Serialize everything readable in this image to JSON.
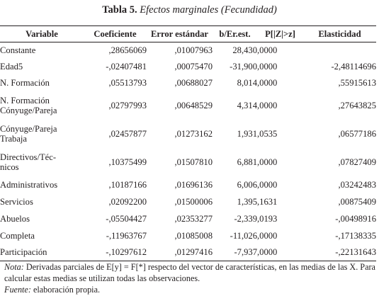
{
  "table": {
    "title_number": "Tabla 5.",
    "title_text": "Efectos marginales (Fecundidad)",
    "headers": [
      "Variable",
      "Coeficiente",
      "Error estándar",
      "b/Er.est.",
      "P[|Z|>z]",
      "Elasticidad"
    ],
    "rows": [
      {
        "variable": "Constante",
        "coef": ",28656069",
        "err": ",01007963",
        "bz": "28,430",
        "p": ",0000",
        "ela": ""
      },
      {
        "variable": "Edad5",
        "coef": "-,02407481",
        "err": ",00075470",
        "bz": "-31,900",
        "p": ",0000",
        "ela": "-2,48114696"
      },
      {
        "variable": "N. Formación",
        "coef": ",05513793",
        "err": ",00688027",
        "bz": "8,014",
        "p": ",0000",
        "ela": ",55915613"
      },
      {
        "variable": "N. Formación\nCónyuge/Pareja",
        "coef": ",02797993",
        "err": ",00648529",
        "bz": "4,314",
        "p": ",0000",
        "ela": ",27643825"
      },
      {
        "variable": "Cónyuge/Pareja\nTrabaja",
        "coef": ",02457877",
        "err": ",01273162",
        "bz": "1,931",
        "p": ",0535",
        "ela": ",06577186"
      },
      {
        "variable": "Directivos/Téc-\nnicos",
        "coef": ",10375499",
        "err": ",01507810",
        "bz": "6,881",
        "p": ",0000",
        "ela": ",07827409"
      },
      {
        "variable": "Administrativos",
        "coef": ",10187166",
        "err": ",01696136",
        "bz": "6,006",
        "p": ",0000",
        "ela": ",03242483"
      },
      {
        "variable": "Servicios",
        "coef": ",02092200",
        "err": ",01500006",
        "bz": "1,395",
        "p": ",1631",
        "ela": ",00875409"
      },
      {
        "variable": "Abuelos",
        "coef": "-,05504427",
        "err": ",02353277",
        "bz": "-2,339",
        "p": ",0193",
        "ela": "-,00498916"
      },
      {
        "variable": "Completa",
        "coef": "-,11963767",
        "err": ",01085008",
        "bz": "-11,026",
        "p": ",0000",
        "ela": "-,17138335"
      },
      {
        "variable": "Participación",
        "coef": "-,10297612",
        "err": ",01297416",
        "bz": "-7,937",
        "p": ",0000",
        "ela": "-,22131643"
      }
    ]
  },
  "notes": {
    "note_label": "Nota:",
    "note_text": " Derivadas parciales de E[y] = F[*] respecto del vector de características, en las medias de las X. Para calcular estas medias se utilizan todas las observaciones.",
    "source_label": "Fuente:",
    "source_text": " elaboración propia."
  }
}
